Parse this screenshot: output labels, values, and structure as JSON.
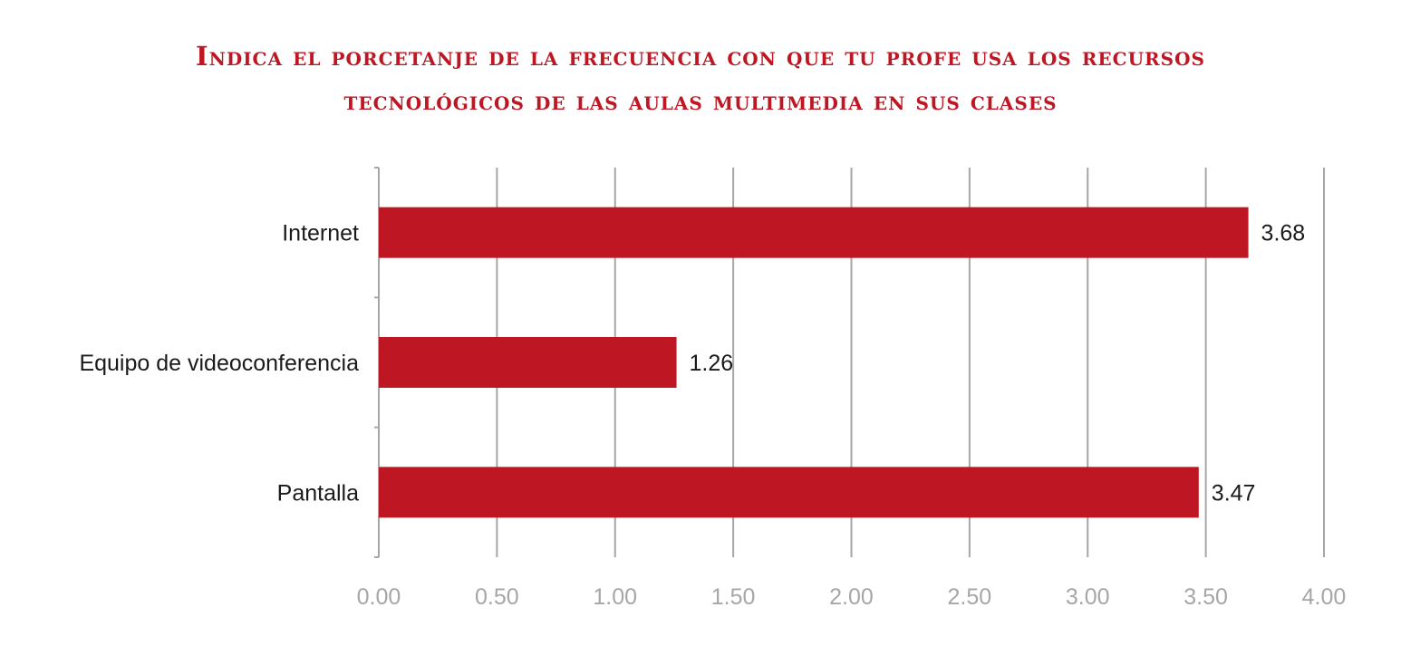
{
  "chart_data": {
    "type": "bar",
    "orientation": "horizontal",
    "title_lines": [
      "Indica el porcetanje de la frecuencia con que tu profe usa los recursos",
      "tecnológicos de las aulas multimedia en sus clases"
    ],
    "categories": [
      "Internet",
      "Equipo de videoconferencia",
      "Pantalla"
    ],
    "values": [
      3.68,
      1.26,
      3.47
    ],
    "data_labels": [
      "3.68",
      "1.26",
      "3.47"
    ],
    "xlim": [
      0,
      4
    ],
    "x_ticks": [
      "0.00",
      "0.50",
      "1.00",
      "1.50",
      "2.00",
      "2.50",
      "3.00",
      "3.50",
      "4.00"
    ],
    "grid": true,
    "legend": "none",
    "colors": {
      "bar": "#be1622",
      "title": "#be1622",
      "grid": "#a6a6a6",
      "tick_text": "#a6a6a6"
    }
  }
}
